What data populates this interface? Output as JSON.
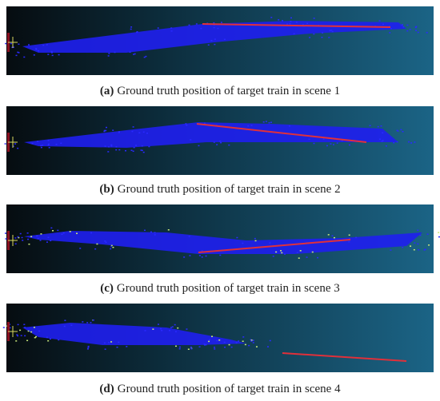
{
  "panels": [
    {
      "label": "(a)",
      "text": "Ground truth position of target train in scene 1"
    },
    {
      "label": "(b)",
      "text": "Ground truth position of target train in scene 2"
    },
    {
      "label": "(c)",
      "text": "Ground truth position of target train in scene 3"
    },
    {
      "label": "(d)",
      "text": "Ground truth position of target train in scene 4"
    }
  ]
}
